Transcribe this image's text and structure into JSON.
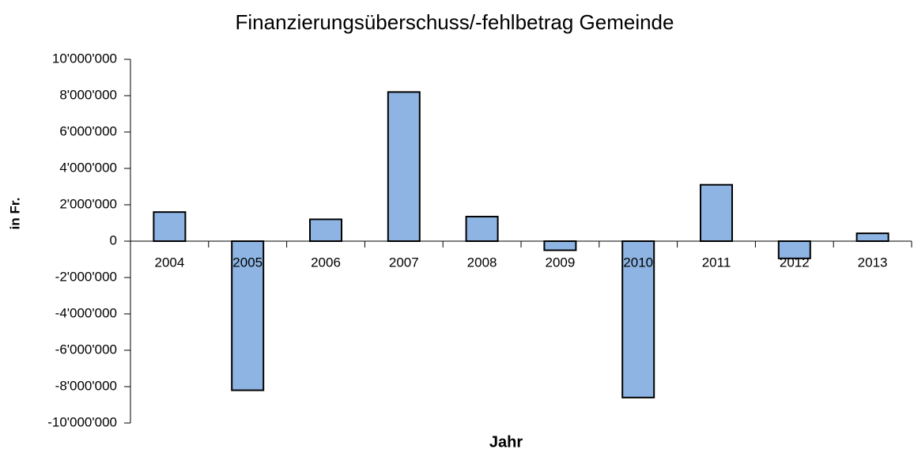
{
  "chart_data": {
    "type": "bar",
    "title": "Finanzierungsüberschuss/-fehlbetrag Gemeinde",
    "x_label": "Jahr",
    "y_label": "in Fr.",
    "categories": [
      "2004",
      "2005",
      "2006",
      "2007",
      "2008",
      "2009",
      "2010",
      "2011",
      "2012",
      "2013"
    ],
    "values": [
      1600000,
      -8200000,
      1200000,
      8200000,
      1350000,
      -500000,
      -8600000,
      3100000,
      -950000,
      430000
    ],
    "color": "#8eb4e3",
    "ylim": [
      -10000000,
      10000000
    ],
    "yticks": [
      {
        "value": -10000000,
        "label": "-10'000'000"
      },
      {
        "value": -8000000,
        "label": "-8'000'000"
      },
      {
        "value": -6000000,
        "label": "-6'000'000"
      },
      {
        "value": -4000000,
        "label": "-4'000'000"
      },
      {
        "value": -2000000,
        "label": "-2'000'000"
      },
      0,
      {
        "value": 2000000,
        "label": "2'000'000"
      },
      {
        "value": 4000000,
        "label": "4'000'000"
      },
      {
        "value": 6000000,
        "label": "6'000'000"
      },
      {
        "value": 8000000,
        "label": "8'000'000"
      },
      {
        "value": 10000000,
        "label": "10'000'000"
      }
    ],
    "grid": false
  }
}
